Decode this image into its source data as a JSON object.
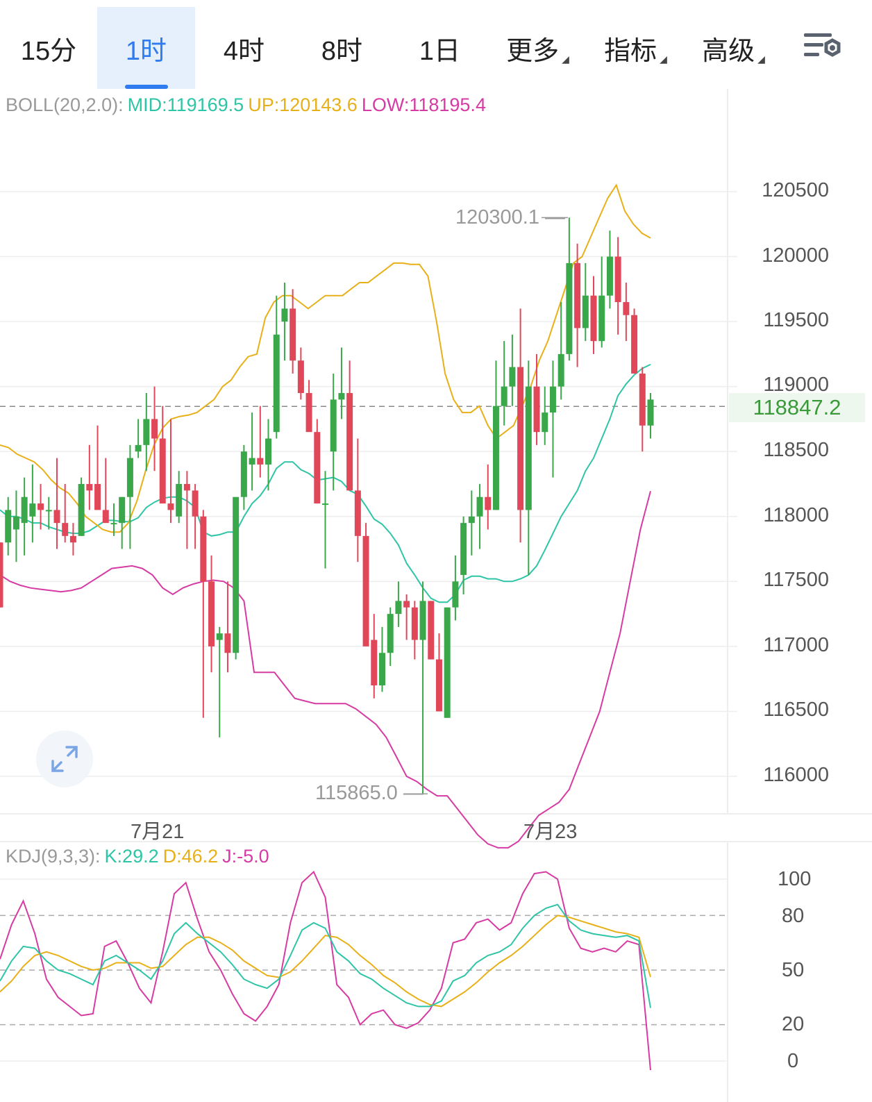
{
  "tabs": [
    {
      "label": "15分"
    },
    {
      "label": "1时",
      "active": true
    },
    {
      "label": "4时"
    },
    {
      "label": "8时"
    },
    {
      "label": "1日"
    },
    {
      "label": "更多",
      "dropdown": true
    },
    {
      "label": "指标",
      "dropdown": true
    },
    {
      "label": "高级",
      "dropdown": true
    }
  ],
  "settings_icon": "chart-settings-icon",
  "boll": {
    "name": "BOLL(20,2.0):",
    "mid": "MID:119169.5",
    "up": "UP:120143.6",
    "low": "LOW:118195.4"
  },
  "kdj": {
    "name": "KDJ(9,3,3):",
    "k": "K:29.2",
    "d": "D:46.2",
    "j": "J:-5.0"
  },
  "colors": {
    "mid": "#2ec4a6",
    "up": "#e8b018",
    "low": "#d63ba4",
    "bull": "#3aa84a",
    "bear": "#e0485a",
    "grid": "#eeeeee",
    "accent": "#2f7bf0"
  },
  "price_axis": [
    "120500",
    "120000",
    "119500",
    "119000",
    "118500",
    "118000",
    "117500",
    "117000",
    "116500",
    "116000"
  ],
  "current_price": "118847.2",
  "max_label": "120300.1",
  "min_label": "115865.0",
  "x_labels": [
    "7月21",
    "7月23"
  ],
  "kdj_axis": [
    "100",
    "80",
    "50",
    "20",
    "0"
  ],
  "chart_data": {
    "type": "candlestick",
    "interval": "1h",
    "ylim": [
      115600,
      120800
    ],
    "candles_ohlc": [
      [
        117800,
        117800,
        117300,
        117300
      ],
      [
        117800,
        118150,
        117700,
        118050
      ],
      [
        117900,
        118200,
        117650,
        118000
      ],
      [
        117950,
        118300,
        117700,
        118150
      ],
      [
        118000,
        118400,
        117800,
        118100
      ],
      [
        118100,
        118250,
        117900,
        118050
      ],
      [
        118050,
        118150,
        117900,
        118050
      ],
      [
        118050,
        118450,
        117750,
        117950
      ],
      [
        117950,
        118250,
        117800,
        117850
      ],
      [
        117850,
        117950,
        117700,
        117800
      ],
      [
        117850,
        118300,
        117850,
        118250
      ],
      [
        118250,
        118550,
        118050,
        118200
      ],
      [
        118250,
        118700,
        118100,
        118050
      ],
      [
        118050,
        118450,
        117950,
        117950
      ],
      [
        117950,
        118100,
        117850,
        117950
      ],
      [
        117950,
        118150,
        117750,
        118150
      ],
      [
        118150,
        118550,
        117750,
        118450
      ],
      [
        118500,
        118750,
        118450,
        118550
      ],
      [
        118550,
        118950,
        118350,
        118750
      ],
      [
        118750,
        119000,
        118350,
        118600
      ],
      [
        118600,
        118850,
        118400,
        118100
      ],
      [
        118100,
        118750,
        117950,
        118050
      ],
      [
        118000,
        118350,
        117950,
        118250
      ],
      [
        118250,
        118350,
        117750,
        118200
      ],
      [
        118200,
        118250,
        117750,
        118000
      ],
      [
        118000,
        118050,
        116450,
        117500
      ],
      [
        117500,
        117700,
        116800,
        117000
      ],
      [
        117050,
        117150,
        116300,
        117100
      ],
      [
        117100,
        117500,
        116800,
        116950
      ],
      [
        116950,
        118100,
        116900,
        118150
      ],
      [
        118150,
        118550,
        118050,
        118500
      ],
      [
        118400,
        118800,
        118200,
        118450
      ],
      [
        118450,
        118850,
        118300,
        118400
      ],
      [
        118400,
        118750,
        118200,
        118600
      ],
      [
        118650,
        119700,
        118600,
        119400
      ],
      [
        119500,
        119800,
        119200,
        119600
      ],
      [
        119600,
        119750,
        119100,
        119200
      ],
      [
        119200,
        119300,
        118900,
        118950
      ],
      [
        118950,
        119050,
        118700,
        118650
      ],
      [
        118650,
        118750,
        118100,
        118100
      ],
      [
        118100,
        118350,
        117600,
        118100
      ],
      [
        118500,
        119100,
        118200,
        118900
      ],
      [
        118900,
        119300,
        118750,
        118950
      ],
      [
        118950,
        119200,
        118600,
        118200
      ],
      [
        118200,
        118600,
        117650,
        117850
      ],
      [
        117850,
        117950,
        117050,
        117000
      ],
      [
        117050,
        117250,
        116600,
        116700
      ],
      [
        116700,
        117150,
        116650,
        116950
      ],
      [
        116950,
        117300,
        116850,
        117250
      ],
      [
        117250,
        117500,
        117150,
        117350
      ],
      [
        117350,
        117400,
        117050,
        117300
      ],
      [
        117300,
        117350,
        116900,
        117050
      ],
      [
        117050,
        117500,
        115865,
        117350
      ],
      [
        117350,
        117350,
        116900,
        116900
      ],
      [
        116900,
        117100,
        116500,
        116500
      ],
      [
        116450,
        117300,
        116450,
        117300
      ],
      [
        117300,
        117700,
        117200,
        117500
      ],
      [
        117550,
        118000,
        117400,
        117950
      ],
      [
        117950,
        118200,
        117700,
        118000
      ],
      [
        118000,
        118250,
        117750,
        118150
      ],
      [
        118150,
        118400,
        117900,
        118050
      ],
      [
        118050,
        119200,
        118050,
        118850
      ],
      [
        118850,
        119350,
        118700,
        119000
      ],
      [
        119000,
        119400,
        118850,
        119150
      ],
      [
        119150,
        119600,
        117800,
        118050
      ],
      [
        118050,
        119200,
        117550,
        119000
      ],
      [
        119000,
        119250,
        118550,
        118650
      ],
      [
        118650,
        119000,
        118550,
        118800
      ],
      [
        118800,
        119200,
        118300,
        119000
      ],
      [
        119000,
        119650,
        118900,
        119250
      ],
      [
        119250,
        120300,
        119200,
        119950
      ],
      [
        119950,
        120100,
        119150,
        119450
      ],
      [
        119450,
        119950,
        119350,
        119700
      ],
      [
        119700,
        119850,
        119250,
        119350
      ],
      [
        119350,
        120000,
        119300,
        119700
      ],
      [
        119700,
        120200,
        119600,
        120000
      ],
      [
        120000,
        120150,
        119400,
        119650
      ],
      [
        119650,
        119800,
        119350,
        119550
      ],
      [
        119550,
        119600,
        119100,
        119100
      ],
      [
        119100,
        119150,
        118500,
        118700
      ],
      [
        118700,
        118950,
        118600,
        118900
      ]
    ],
    "boll_mid": [
      118050,
      118000,
      118000,
      117980,
      117950,
      117950,
      117920,
      117900,
      117880,
      117870,
      117870,
      117890,
      117930,
      117970,
      117970,
      117960,
      117960,
      117990,
      118070,
      118110,
      118140,
      118150,
      118150,
      118120,
      118070,
      117880,
      117850,
      117860,
      117880,
      117880,
      118000,
      118100,
      118160,
      118250,
      118370,
      118420,
      118420,
      118360,
      118330,
      118280,
      118290,
      118300,
      118270,
      118200,
      118170,
      118080,
      117980,
      117940,
      117870,
      117780,
      117640,
      117550,
      117450,
      117370,
      117340,
      117340,
      117400,
      117510,
      117540,
      117540,
      117520,
      117520,
      117500,
      117500,
      117520,
      117550,
      117620,
      117740,
      117870,
      118000,
      118100,
      118200,
      118350,
      118450,
      118600,
      118750,
      118930,
      119020,
      119090,
      119140,
      119170
    ],
    "boll_up": [
      118550,
      118530,
      118480,
      118450,
      118420,
      118360,
      118280,
      118220,
      118180,
      118100,
      118000,
      117950,
      117900,
      117880,
      117880,
      117950,
      118120,
      118350,
      118550,
      118680,
      118750,
      118770,
      118780,
      118800,
      118850,
      118900,
      119000,
      119050,
      119150,
      119230,
      119250,
      119530,
      119650,
      119700,
      119700,
      119650,
      119600,
      119650,
      119700,
      119700,
      119700,
      119750,
      119800,
      119800,
      119850,
      119900,
      119950,
      119950,
      119940,
      119940,
      119850,
      119500,
      119100,
      118900,
      118800,
      118800,
      118850,
      118700,
      118600,
      118650,
      118700,
      118850,
      119000,
      119200,
      119350,
      119550,
      119750,
      119950,
      120000,
      120150,
      120300,
      120450,
      120550,
      120350,
      120250,
      120180,
      120143.6
    ],
    "boll_low": [
      117550,
      117500,
      117470,
      117450,
      117440,
      117430,
      117420,
      117430,
      117450,
      117500,
      117550,
      117600,
      117610,
      117620,
      117600,
      117550,
      117450,
      117400,
      117450,
      117480,
      117500,
      117510,
      117500,
      117450,
      117350,
      116800,
      116800,
      116800,
      116700,
      116600,
      116580,
      116560,
      116560,
      116560,
      116560,
      116520,
      116460,
      116400,
      116300,
      116150,
      116000,
      115960,
      115900,
      115850,
      115850,
      115750,
      115650,
      115550,
      115480,
      115450,
      115450,
      115500,
      115600,
      115700,
      115750,
      115800,
      115900,
      116100,
      116300,
      116500,
      116800,
      117100,
      117500,
      117900,
      118195.4
    ],
    "kdj": {
      "k": [
        44,
        55,
        63,
        62,
        55,
        50,
        48,
        45,
        42,
        55,
        58,
        54,
        50,
        45,
        55,
        70,
        76,
        70,
        65,
        60,
        53,
        45,
        42,
        40,
        45,
        58,
        72,
        76,
        73,
        60,
        55,
        48,
        45,
        40,
        36,
        32,
        30,
        30,
        33,
        44,
        47,
        54,
        58,
        60,
        64,
        73,
        80,
        84,
        86,
        77,
        72,
        70,
        69,
        68,
        69,
        66,
        29.2
      ],
      "d": [
        38,
        44,
        52,
        58,
        60,
        58,
        55,
        52,
        50,
        51,
        54,
        54,
        54,
        51,
        52,
        58,
        64,
        68,
        68,
        65,
        61,
        55,
        51,
        47,
        46,
        49,
        55,
        62,
        69,
        68,
        64,
        58,
        53,
        47,
        43,
        38,
        34,
        31,
        30,
        34,
        38,
        43,
        49,
        54,
        58,
        63,
        69,
        75,
        80,
        79,
        77,
        75,
        73,
        71,
        70,
        68,
        46.2
      ],
      "j": [
        56,
        75,
        88,
        70,
        45,
        35,
        30,
        25,
        26,
        63,
        66,
        54,
        40,
        32,
        60,
        92,
        98,
        78,
        60,
        50,
        37,
        26,
        22,
        30,
        42,
        76,
        98,
        104,
        90,
        42,
        35,
        20,
        26,
        28,
        20,
        18,
        21,
        28,
        40,
        65,
        67,
        76,
        78,
        72,
        76,
        92,
        103,
        104,
        100,
        73,
        62,
        60,
        62,
        60,
        66,
        64,
        -5.0
      ]
    }
  }
}
